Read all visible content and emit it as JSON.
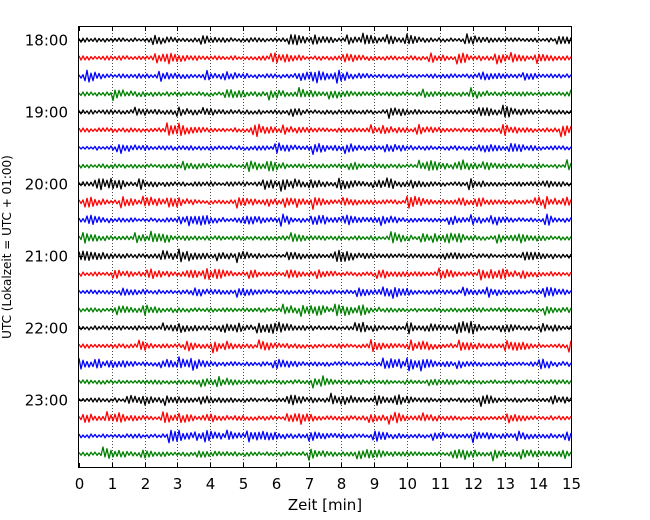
{
  "chart_data": {
    "type": "line",
    "title": "",
    "xlabel": "Zeit  [min]",
    "ylabel": "UTC (Lokalzeit = UTC + 01:00)",
    "xlim": [
      0,
      15
    ],
    "x_ticks": [
      0,
      1,
      2,
      3,
      4,
      5,
      6,
      7,
      8,
      9,
      10,
      11,
      12,
      13,
      14,
      15
    ],
    "x_tick_labels": [
      "0",
      "1",
      "2",
      "3",
      "4",
      "5",
      "6",
      "7",
      "8",
      "9",
      "10",
      "11",
      "12",
      "13",
      "14",
      "15"
    ],
    "y_tick_labels": [
      "18:00",
      "19:00",
      "20:00",
      "21:00",
      "22:00",
      "23:00"
    ],
    "trace_interval_minutes": 15,
    "trace_colors": [
      "#000000",
      "#ff0000",
      "#0000ff",
      "#008000"
    ],
    "vertical_grid": true,
    "grid_style": "dotted",
    "legend": "none",
    "series": [
      {
        "start": "18:00",
        "color": "#000000"
      },
      {
        "start": "18:15",
        "color": "#ff0000"
      },
      {
        "start": "18:30",
        "color": "#0000ff"
      },
      {
        "start": "18:45",
        "color": "#008000"
      },
      {
        "start": "19:00",
        "color": "#000000"
      },
      {
        "start": "19:15",
        "color": "#ff0000"
      },
      {
        "start": "19:30",
        "color": "#0000ff"
      },
      {
        "start": "19:45",
        "color": "#008000"
      },
      {
        "start": "20:00",
        "color": "#000000"
      },
      {
        "start": "20:15",
        "color": "#ff0000"
      },
      {
        "start": "20:30",
        "color": "#0000ff"
      },
      {
        "start": "20:45",
        "color": "#008000"
      },
      {
        "start": "21:00",
        "color": "#000000"
      },
      {
        "start": "21:15",
        "color": "#ff0000"
      },
      {
        "start": "21:30",
        "color": "#0000ff"
      },
      {
        "start": "21:45",
        "color": "#008000"
      },
      {
        "start": "22:00",
        "color": "#000000"
      },
      {
        "start": "22:15",
        "color": "#ff0000"
      },
      {
        "start": "22:30",
        "color": "#0000ff"
      },
      {
        "start": "22:45",
        "color": "#008000"
      },
      {
        "start": "23:00",
        "color": "#000000"
      },
      {
        "start": "23:15",
        "color": "#ff0000"
      },
      {
        "start": "23:30",
        "color": "#0000ff"
      },
      {
        "start": "23:45",
        "color": "#008000"
      }
    ]
  }
}
